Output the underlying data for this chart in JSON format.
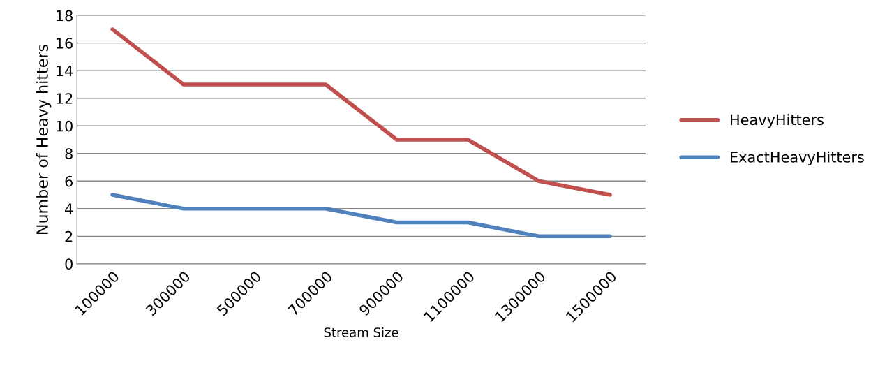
{
  "chart_data": {
    "type": "line",
    "xlabel": "Stream Size",
    "ylabel": "Number of Heavy hitters",
    "categories": [
      "100000",
      "300000",
      "500000",
      "700000",
      "900000",
      "1100000",
      "1300000",
      "1500000"
    ],
    "series": [
      {
        "name": "HeavyHitters",
        "color": "#c0504d",
        "values": [
          17,
          13,
          13,
          13,
          9,
          9,
          6,
          5
        ]
      },
      {
        "name": "ExactHeavyHitters",
        "color": "#4f81bd",
        "values": [
          5,
          4,
          4,
          4,
          3,
          3,
          2,
          2
        ]
      }
    ],
    "ylim": [
      0,
      18
    ],
    "yticks": [
      0,
      2,
      4,
      6,
      8,
      10,
      12,
      14,
      16,
      18
    ],
    "grid": "y",
    "legend": "right",
    "marker": "none",
    "line_style": "solid"
  }
}
